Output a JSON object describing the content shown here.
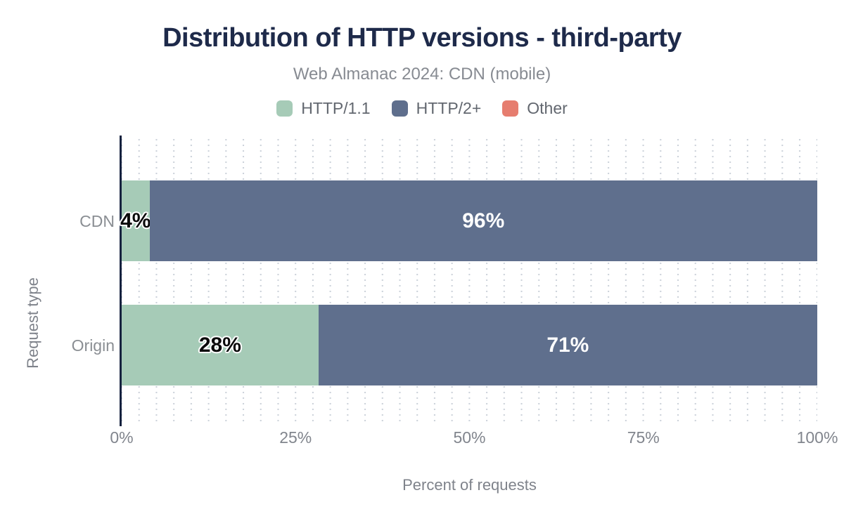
{
  "title": "Distribution of HTTP versions - third-party",
  "subtitle": "Web Almanac 2024: CDN (mobile)",
  "legend": [
    {
      "label": "HTTP/1.1",
      "color": "#a6cbb7"
    },
    {
      "label": "HTTP/2+",
      "color": "#5f6f8d"
    },
    {
      "label": "Other",
      "color": "#e67d6f"
    }
  ],
  "chart_data": {
    "type": "bar",
    "orientation": "horizontal",
    "stacked": true,
    "title": "Distribution of HTTP versions - third-party",
    "subtitle": "Web Almanac 2024: CDN (mobile)",
    "categories": [
      "CDN",
      "Origin"
    ],
    "series": [
      {
        "name": "HTTP/1.1",
        "color": "#a6cbb7",
        "values": [
          4,
          28
        ],
        "labels": [
          "4%",
          "28%"
        ],
        "label_style": "dark"
      },
      {
        "name": "HTTP/2+",
        "color": "#5f6f8d",
        "values": [
          96,
          71
        ],
        "labels": [
          "96%",
          "71%"
        ],
        "label_style": "light"
      },
      {
        "name": "Other",
        "color": "#e67d6f",
        "values": [
          0,
          0
        ],
        "labels": [
          "",
          ""
        ],
        "label_style": "light"
      }
    ],
    "xlabel": "Percent of requests",
    "ylabel": "Request type",
    "x_ticks": [
      "0%",
      "25%",
      "50%",
      "75%",
      "100%"
    ],
    "xlim": [
      0,
      100
    ],
    "grid": "dotted-vertical",
    "legend_position": "top"
  },
  "colors": {
    "title": "#1e2a4a",
    "subtitle_text": "#878b92",
    "axis_line": "#16223f",
    "tick_text": "#81858d",
    "grid_dots": "#ccd2da",
    "series_http11": "#a6cbb7",
    "series_http2plus": "#5f6f8d",
    "series_other": "#e67d6f",
    "label_on_light": "#0a0a0a",
    "label_on_dark": "#ffffff"
  }
}
